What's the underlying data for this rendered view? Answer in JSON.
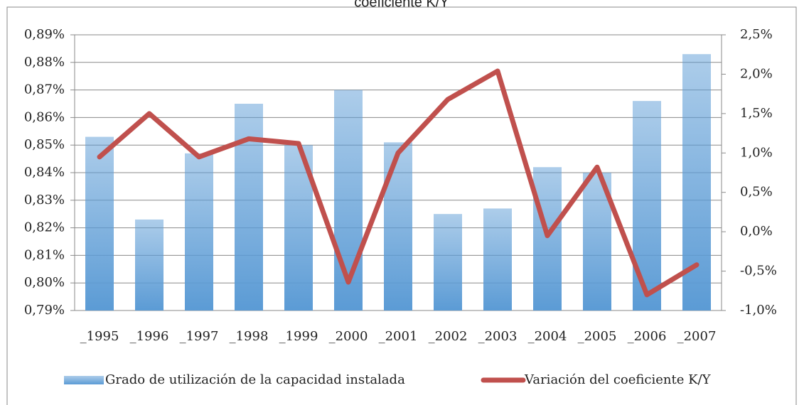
{
  "chart_data": {
    "type": "bar",
    "title": "coeficiente K/Y",
    "categories": [
      "_1995",
      "_1996",
      "_1997",
      "_1998",
      "_1999",
      "_2000",
      "_2001",
      "_2002",
      "_2003",
      "_2004",
      "_2005",
      "_2006",
      "_2007"
    ],
    "series": [
      {
        "name": "Grado de utilización de la capacidad instalada",
        "type": "bar",
        "color": "#5b9bd5",
        "values": [
          0.853,
          0.823,
          0.847,
          0.865,
          0.85,
          0.87,
          0.851,
          0.825,
          0.827,
          0.842,
          0.84,
          0.866,
          0.883
        ]
      },
      {
        "name": "Variación del coeficiente K/Y",
        "type": "line",
        "axis": "y2",
        "color": "#c0504d",
        "values": [
          0.95,
          1.5,
          0.95,
          1.18,
          1.12,
          -0.64,
          1.0,
          1.68,
          2.04,
          -0.05,
          0.82,
          -0.8,
          -0.42
        ]
      }
    ],
    "ylim": [
      0.79,
      0.89
    ],
    "yticks": [
      {
        "value": 0.79,
        "label": "0,79%"
      },
      {
        "value": 0.8,
        "label": "0,80%"
      },
      {
        "value": 0.81,
        "label": "0,81%"
      },
      {
        "value": 0.82,
        "label": "0,82%"
      },
      {
        "value": 0.83,
        "label": "0,83%"
      },
      {
        "value": 0.84,
        "label": "0,84%"
      },
      {
        "value": 0.85,
        "label": "0,85%"
      },
      {
        "value": 0.86,
        "label": "0,86%"
      },
      {
        "value": 0.87,
        "label": "0,87%"
      },
      {
        "value": 0.88,
        "label": "0,88%"
      },
      {
        "value": 0.89,
        "label": "0,89%"
      }
    ],
    "y2lim": [
      -1.0,
      2.5
    ],
    "y2ticks": [
      {
        "value": -1.0,
        "label": "-1,0%"
      },
      {
        "value": -0.5,
        "label": "-0,5%"
      },
      {
        "value": 0.0,
        "label": "0,0%"
      },
      {
        "value": 0.5,
        "label": "0,5%"
      },
      {
        "value": 1.0,
        "label": "1,0%"
      },
      {
        "value": 1.5,
        "label": "1,5%"
      },
      {
        "value": 2.0,
        "label": "2,0%"
      },
      {
        "value": 2.5,
        "label": "2,5%"
      }
    ],
    "grid": true,
    "legend": "bottom"
  }
}
